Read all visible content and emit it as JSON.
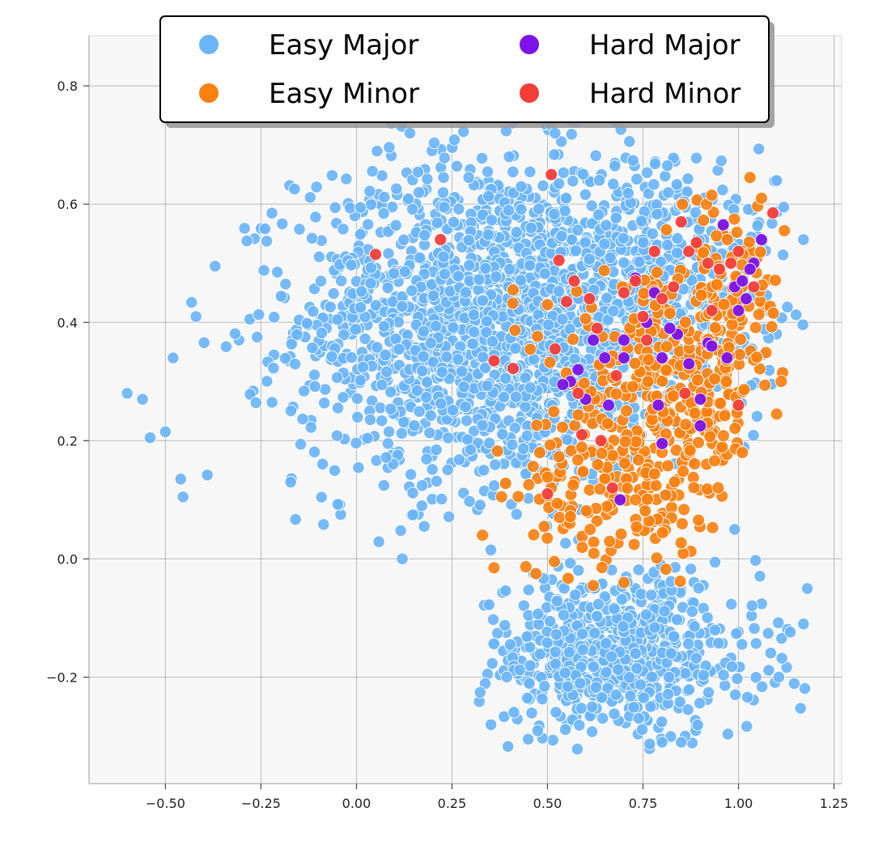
{
  "chart_data": {
    "type": "scatter",
    "title": "",
    "xlabel": "",
    "ylabel": "",
    "xlim": [
      -0.7,
      1.27
    ],
    "ylim": [
      -0.38,
      0.885
    ],
    "x_ticks": [
      -0.5,
      -0.25,
      0.0,
      0.25,
      0.5,
      0.75,
      1.0,
      1.25
    ],
    "x_tick_labels": [
      "−0.50",
      "−0.25",
      "0.00",
      "0.25",
      "0.50",
      "0.75",
      "1.00",
      "1.25"
    ],
    "y_ticks": [
      -0.2,
      0.0,
      0.2,
      0.4,
      0.6,
      0.8
    ],
    "y_tick_labels": [
      "−0.2",
      "0.0",
      "0.2",
      "0.4",
      "0.6",
      "0.8"
    ],
    "grid": true,
    "legend": {
      "placement": "top-center",
      "columns": 2,
      "entries": [
        "Easy Major",
        "Hard Major",
        "Easy Minor",
        "Hard Minor"
      ]
    },
    "series": [
      {
        "name": "Easy Major",
        "color": "#6ab4f8",
        "clusters": [
          {
            "cx": 0.35,
            "cy": 0.4,
            "sx": 0.25,
            "sy": 0.14,
            "n": 1700,
            "xmin": -0.62,
            "xmax": 1.12,
            "ymin": 0.0,
            "ymax": 0.74
          },
          {
            "cx": 0.82,
            "cy": 0.48,
            "sx": 0.15,
            "sy": 0.11,
            "n": 350,
            "xmin": 0.45,
            "xmax": 1.18,
            "ymin": 0.1,
            "ymax": 0.72
          },
          {
            "cx": 0.68,
            "cy": -0.16,
            "sx": 0.19,
            "sy": 0.07,
            "n": 650,
            "xmin": 0.3,
            "xmax": 1.18,
            "ymin": -0.33,
            "ymax": 0.0
          }
        ],
        "points": [
          [
            -0.6,
            0.28
          ],
          [
            -0.56,
            0.27
          ],
          [
            -0.54,
            0.205
          ],
          [
            -0.5,
            0.215
          ],
          [
            -0.48,
            0.34
          ],
          [
            -0.46,
            0.135
          ],
          [
            -0.42,
            0.41
          ],
          [
            -0.37,
            0.495
          ],
          [
            0.12,
            0.0
          ],
          [
            0.8,
            -0.31
          ],
          [
            0.85,
            -0.31
          ],
          [
            1.1,
            0.64
          ],
          [
            1.17,
            0.54
          ],
          [
            1.18,
            -0.05
          ],
          [
            1.17,
            -0.11
          ],
          [
            0.99,
            0.05
          ],
          [
            0.52,
            0.72
          ],
          [
            0.56,
            0.74
          ],
          [
            0.68,
            0.74
          ],
          [
            0.14,
            0.72
          ]
        ]
      },
      {
        "name": "Easy Minor",
        "color": "#fa8010",
        "clusters": [
          {
            "cx": 0.8,
            "cy": 0.25,
            "sx": 0.13,
            "sy": 0.11,
            "n": 340,
            "xmin": 0.32,
            "xmax": 1.0,
            "ymin": -0.04,
            "ymax": 0.5
          },
          {
            "cx": 0.96,
            "cy": 0.42,
            "sx": 0.08,
            "sy": 0.09,
            "n": 130,
            "xmin": 0.8,
            "xmax": 1.12,
            "ymin": 0.18,
            "ymax": 0.62
          },
          {
            "cx": 0.62,
            "cy": 0.1,
            "sx": 0.11,
            "sy": 0.07,
            "n": 90,
            "xmin": 0.35,
            "xmax": 0.85,
            "ymin": -0.05,
            "ymax": 0.25
          }
        ],
        "points": [
          [
            0.36,
            -0.015
          ],
          [
            0.47,
            -0.025
          ],
          [
            0.41,
            0.455
          ],
          [
            0.62,
            -0.045
          ],
          [
            0.7,
            -0.04
          ],
          [
            0.93,
            0.615
          ],
          [
            1.06,
            0.61
          ],
          [
            1.03,
            0.645
          ],
          [
            1.12,
            0.555
          ],
          [
            1.1,
            0.245
          ],
          [
            1.01,
            0.18
          ],
          [
            0.33,
            0.04
          ],
          [
            0.5,
            0.43
          ],
          [
            0.38,
            0.105
          ]
        ]
      },
      {
        "name": "Hard Major",
        "color": "#7c13e8",
        "points": [
          [
            0.96,
            0.565
          ],
          [
            1.06,
            0.54
          ],
          [
            1.04,
            0.5
          ],
          [
            0.78,
            0.45
          ],
          [
            0.84,
            0.38
          ],
          [
            0.79,
            0.26
          ],
          [
            0.73,
            0.475
          ],
          [
            0.62,
            0.37
          ],
          [
            0.65,
            0.34
          ],
          [
            0.7,
            0.37
          ],
          [
            0.58,
            0.32
          ],
          [
            0.56,
            0.3
          ],
          [
            0.54,
            0.295
          ],
          [
            0.6,
            0.27
          ],
          [
            0.66,
            0.26
          ],
          [
            0.7,
            0.34
          ],
          [
            0.8,
            0.34
          ],
          [
            0.82,
            0.39
          ],
          [
            0.87,
            0.33
          ],
          [
            0.92,
            0.365
          ],
          [
            0.93,
            0.36
          ],
          [
            0.9,
            0.225
          ],
          [
            0.8,
            0.195
          ],
          [
            0.69,
            0.1
          ],
          [
            0.9,
            0.27
          ],
          [
            0.97,
            0.34
          ],
          [
            1.0,
            0.42
          ],
          [
            1.02,
            0.44
          ],
          [
            0.99,
            0.46
          ],
          [
            1.01,
            0.47
          ],
          [
            1.03,
            0.49
          ],
          [
            0.76,
            0.4
          ]
        ]
      },
      {
        "name": "Hard Minor",
        "color": "#f43e3a",
        "points": [
          [
            0.05,
            0.515
          ],
          [
            0.22,
            0.54
          ],
          [
            0.36,
            0.335
          ],
          [
            0.41,
            0.322
          ],
          [
            0.51,
            0.65
          ],
          [
            0.52,
            0.355
          ],
          [
            0.53,
            0.505
          ],
          [
            0.55,
            0.435
          ],
          [
            0.57,
            0.47
          ],
          [
            0.58,
            0.28
          ],
          [
            0.59,
            0.21
          ],
          [
            0.61,
            0.44
          ],
          [
            0.63,
            0.39
          ],
          [
            0.64,
            0.2
          ],
          [
            0.67,
            0.12
          ],
          [
            0.5,
            0.11
          ],
          [
            0.7,
            0.45
          ],
          [
            0.73,
            0.47
          ],
          [
            0.75,
            0.41
          ],
          [
            0.78,
            0.52
          ],
          [
            0.8,
            0.44
          ],
          [
            0.83,
            0.46
          ],
          [
            0.85,
            0.57
          ],
          [
            0.87,
            0.52
          ],
          [
            0.89,
            0.535
          ],
          [
            0.92,
            0.5
          ],
          [
            0.95,
            0.49
          ],
          [
            0.98,
            0.5
          ],
          [
            1.0,
            0.52
          ],
          [
            1.04,
            0.46
          ],
          [
            1.09,
            0.585
          ],
          [
            1.0,
            0.26
          ],
          [
            0.93,
            0.42
          ],
          [
            0.86,
            0.28
          ],
          [
            0.76,
            0.37
          ],
          [
            0.68,
            0.31
          ]
        ]
      }
    ]
  }
}
